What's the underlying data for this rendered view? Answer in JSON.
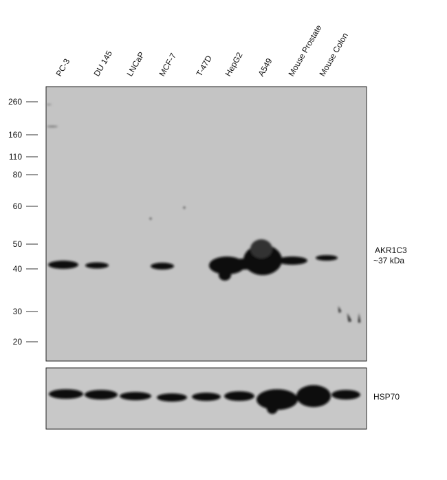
{
  "lanes": [
    "PC-3",
    "DU 145",
    "LNCaP",
    "MCF-7",
    "T-47D",
    "HepG2",
    "A549",
    "Mouse Prostate",
    "Mouse Colon"
  ],
  "markers": [
    "260",
    "160",
    "110",
    "80",
    "60",
    "50",
    "40",
    "30",
    "20"
  ],
  "main_panel": {
    "label": "AKR1C3",
    "size": "~37 kDa"
  },
  "loading_panel": {
    "label": "HSP70"
  }
}
